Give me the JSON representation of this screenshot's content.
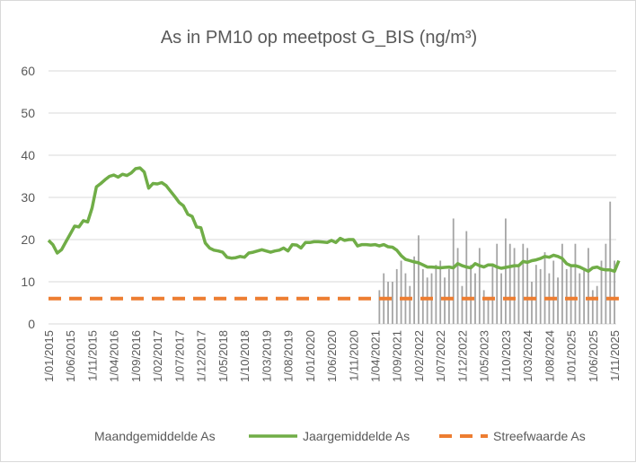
{
  "chart_data": {
    "type": "line",
    "title": "As in PM10 op meetpost G_BIS (ng/m³)",
    "ylim": [
      0,
      60
    ],
    "y_ticks": [
      0,
      10,
      20,
      30,
      40,
      50,
      60
    ],
    "grid": true,
    "legend_position": "bottom",
    "x_tick_labels": [
      "1/01/2015",
      "1/06/2015",
      "1/11/2015",
      "1/04/2016",
      "1/09/2016",
      "1/02/2017",
      "1/07/2017",
      "1/12/2017",
      "1/05/2018",
      "1/10/2018",
      "1/03/2019",
      "1/08/2019",
      "1/01/2020",
      "1/06/2020",
      "1/11/2020",
      "1/04/2021",
      "1/09/2021",
      "1/02/2022",
      "1/07/2022",
      "1/12/2022",
      "1/05/2023",
      "1/10/2023",
      "1/03/2024",
      "1/08/2024",
      "1/01/2025",
      "1/06/2025",
      "1/11/2025"
    ],
    "series": [
      {
        "name": "Maandgemiddelde As",
        "kind": "bar",
        "color": "#a5a5a5",
        "x": [
          "2021-05",
          "2021-06",
          "2021-07",
          "2021-08",
          "2021-09",
          "2021-10",
          "2021-11",
          "2021-12",
          "2022-01",
          "2022-02",
          "2022-03",
          "2022-04",
          "2022-05",
          "2022-06",
          "2022-07",
          "2022-08",
          "2022-09",
          "2022-10",
          "2022-11",
          "2022-12",
          "2023-01",
          "2023-02",
          "2023-03",
          "2023-04",
          "2023-05",
          "2023-06",
          "2023-07",
          "2023-08",
          "2023-09",
          "2023-10",
          "2023-11",
          "2023-12",
          "2024-01",
          "2024-02",
          "2024-03",
          "2024-04",
          "2024-05",
          "2024-06",
          "2024-07",
          "2024-08",
          "2024-09",
          "2024-10",
          "2024-11",
          "2024-12",
          "2025-01",
          "2025-02",
          "2025-03",
          "2025-04",
          "2025-05",
          "2025-06",
          "2025-07",
          "2025-08",
          "2025-09",
          "2025-10",
          "2025-11"
        ],
        "values": [
          8,
          12,
          10,
          10,
          13,
          15,
          12,
          9,
          16,
          21,
          13,
          11,
          12,
          14,
          15,
          11,
          13,
          25,
          18,
          9,
          22,
          14,
          12,
          18,
          8,
          6,
          14,
          19,
          12,
          25,
          19,
          18,
          14,
          19,
          18,
          10,
          14,
          13,
          17,
          12,
          15,
          11,
          19,
          13,
          14,
          19,
          12,
          13,
          18,
          8,
          9,
          15,
          19,
          29,
          15
        ]
      },
      {
        "name": "Jaargemiddelde As",
        "kind": "line",
        "color": "#70ad47",
        "x": [
          "2015-01",
          "2015-02",
          "2015-03",
          "2015-04",
          "2015-05",
          "2015-06",
          "2015-07",
          "2015-08",
          "2015-09",
          "2015-10",
          "2015-11",
          "2015-12",
          "2016-01",
          "2016-02",
          "2016-03",
          "2016-04",
          "2016-05",
          "2016-06",
          "2016-07",
          "2016-08",
          "2016-09",
          "2016-10",
          "2016-11",
          "2016-12",
          "2017-01",
          "2017-02",
          "2017-03",
          "2017-04",
          "2017-05",
          "2017-06",
          "2017-07",
          "2017-08",
          "2017-09",
          "2017-10",
          "2017-11",
          "2017-12",
          "2018-01",
          "2018-02",
          "2018-03",
          "2018-04",
          "2018-05",
          "2018-06",
          "2018-07",
          "2018-08",
          "2018-09",
          "2018-10",
          "2018-11",
          "2018-12",
          "2019-01",
          "2019-02",
          "2019-03",
          "2019-04",
          "2019-05",
          "2019-06",
          "2019-07",
          "2019-08",
          "2019-09",
          "2019-10",
          "2019-11",
          "2019-12",
          "2020-01",
          "2020-02",
          "2020-03",
          "2020-04",
          "2020-05",
          "2020-06",
          "2020-07",
          "2020-08",
          "2020-09",
          "2020-10",
          "2020-11",
          "2020-12",
          "2021-01",
          "2021-02",
          "2021-03",
          "2021-04",
          "2021-05",
          "2021-06",
          "2021-07",
          "2021-08",
          "2021-09",
          "2021-10",
          "2021-11",
          "2021-12",
          "2022-01",
          "2022-02",
          "2022-03",
          "2022-04",
          "2022-05",
          "2022-06",
          "2022-07",
          "2022-08",
          "2022-09",
          "2022-10",
          "2022-11",
          "2022-12",
          "2023-01",
          "2023-02",
          "2023-03",
          "2023-04",
          "2023-05",
          "2023-06",
          "2023-07",
          "2023-08",
          "2023-09",
          "2023-10",
          "2023-11",
          "2023-12",
          "2024-01",
          "2024-02",
          "2024-03",
          "2024-04",
          "2024-05",
          "2024-06",
          "2024-07",
          "2024-08",
          "2024-09",
          "2024-10",
          "2024-11",
          "2024-12",
          "2025-01",
          "2025-02",
          "2025-03",
          "2025-04",
          "2025-05",
          "2025-06",
          "2025-07",
          "2025-08",
          "2025-09",
          "2025-10",
          "2025-11",
          "2025-12"
        ],
        "values": [
          19.8,
          18.8,
          16.8,
          17.6,
          19.5,
          21.3,
          23.2,
          23.0,
          24.5,
          24.2,
          27.5,
          32.5,
          33.3,
          34.2,
          35.0,
          35.3,
          34.8,
          35.5,
          35.2,
          35.8,
          36.8,
          37.0,
          36.0,
          32.2,
          33.3,
          33.2,
          33.5,
          32.8,
          31.5,
          30.2,
          28.8,
          28.0,
          26.0,
          25.5,
          23.0,
          22.8,
          19.2,
          18.0,
          17.5,
          17.3,
          17.0,
          15.8,
          15.6,
          15.7,
          16.0,
          15.8,
          16.8,
          17.0,
          17.3,
          17.6,
          17.3,
          17.0,
          17.3,
          17.5,
          18.0,
          17.3,
          18.8,
          18.7,
          18.0,
          19.3,
          19.3,
          19.5,
          19.5,
          19.4,
          19.3,
          19.8,
          19.3,
          20.3,
          19.8,
          20.0,
          20.0,
          18.5,
          18.8,
          18.8,
          18.7,
          18.8,
          18.5,
          18.8,
          18.3,
          18.2,
          17.5,
          16.2,
          15.3,
          15.0,
          14.7,
          14.5,
          14.0,
          13.5,
          13.5,
          13.4,
          13.3,
          13.4,
          13.5,
          13.3,
          14.3,
          13.8,
          13.5,
          13.3,
          14.3,
          13.8,
          13.5,
          14.0,
          14.0,
          13.5,
          13.2,
          13.4,
          13.6,
          13.8,
          13.8,
          14.8,
          14.6,
          15.0,
          15.2,
          15.5,
          16.0,
          15.8,
          16.3,
          16.0,
          15.5,
          14.3,
          13.8,
          13.8,
          13.5,
          13.0,
          12.5,
          13.3,
          13.5,
          13.0,
          12.8,
          12.8,
          12.5,
          15.0
        ]
      },
      {
        "name": "Streefwaarde As",
        "kind": "dashed-line",
        "color": "#ed7d31",
        "x_range": [
          "2015-01",
          "2025-12"
        ],
        "value": 6
      }
    ]
  }
}
